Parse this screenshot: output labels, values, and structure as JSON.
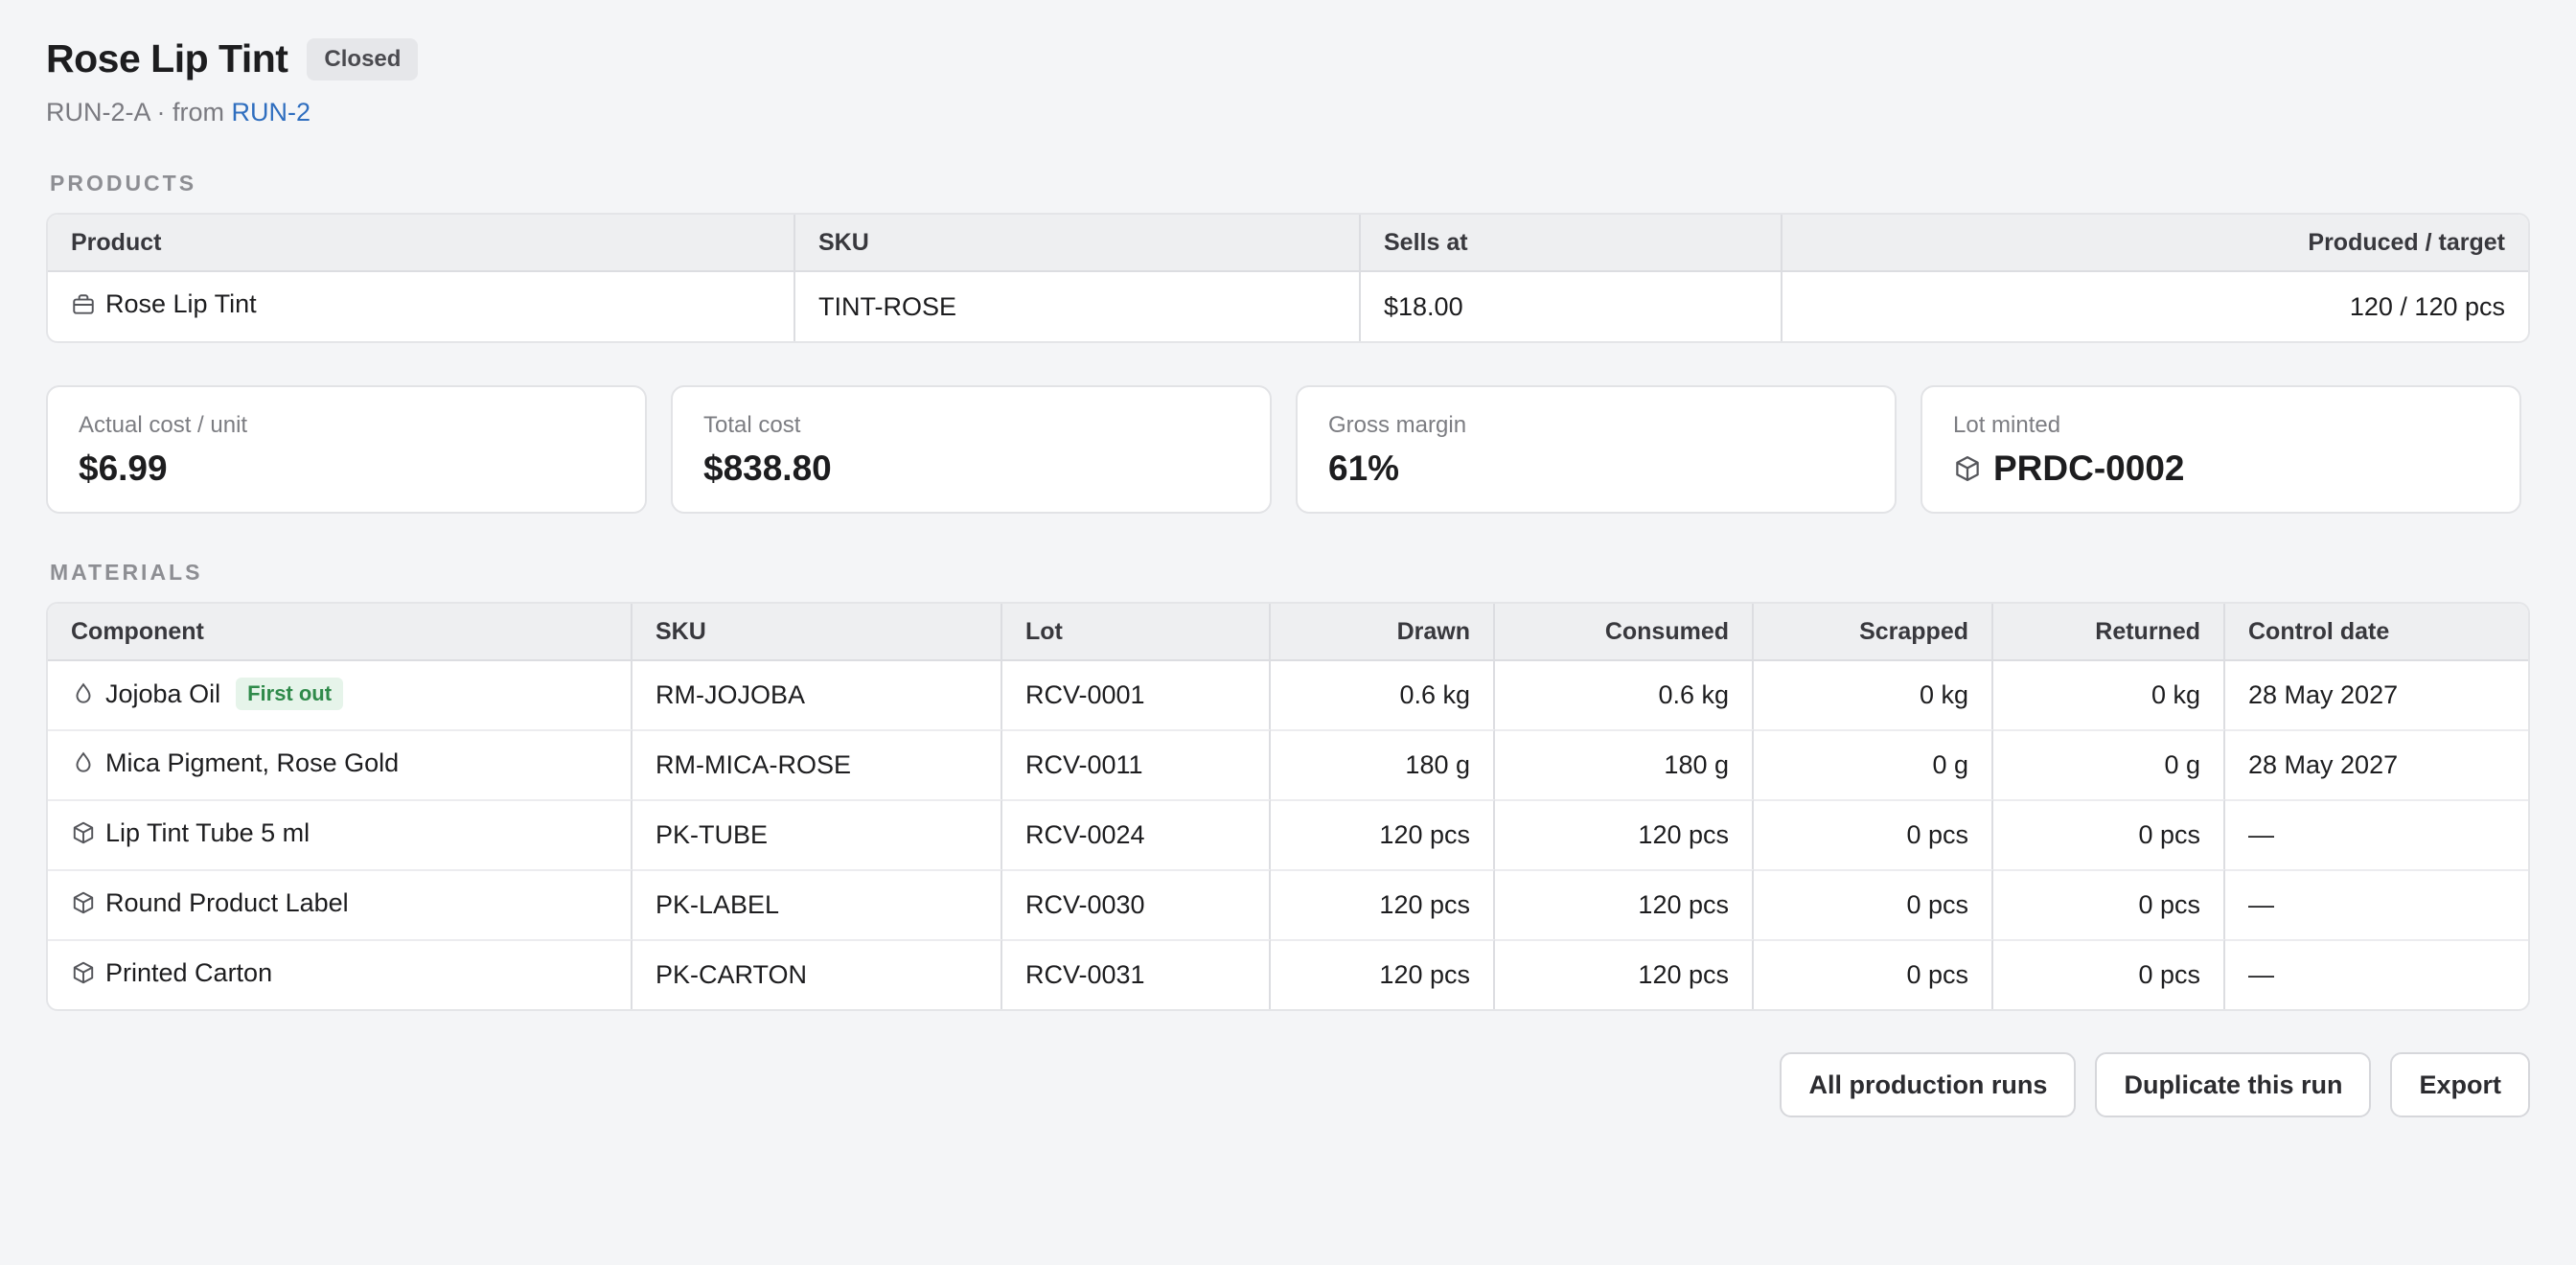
{
  "header": {
    "title": "Rose Lip Tint",
    "status": "Closed",
    "run_id": "RUN-2-A",
    "from_prefix": "· from",
    "parent_run": "RUN-2"
  },
  "products": {
    "section_label": "PRODUCTS",
    "columns": [
      "Product",
      "SKU",
      "Sells at",
      "Produced / target"
    ],
    "rows": [
      {
        "icon": "bag-icon",
        "product": "Rose Lip Tint",
        "sku": "TINT-ROSE",
        "sells_at": "$18.00",
        "produced_target": "120 / 120 pcs"
      }
    ]
  },
  "stats": {
    "cost_unit_label": "Actual cost / unit",
    "cost_unit_value": "$6.99",
    "total_cost_label": "Total cost",
    "total_cost_value": "$838.80",
    "margin_label": "Gross margin",
    "margin_value": "61%",
    "lot_label": "Lot minted",
    "lot_value": "PRDC-0002"
  },
  "materials": {
    "section_label": "MATERIALS",
    "columns": [
      "Component",
      "SKU",
      "Lot",
      "Drawn",
      "Consumed",
      "Scrapped",
      "Returned",
      "Control date"
    ],
    "rows": [
      {
        "icon": "droplet-icon",
        "component": "Jojoba Oil",
        "badge": "First out",
        "sku": "RM-JOJOBA",
        "lot": "RCV-0001",
        "drawn": "0.6 kg",
        "consumed": "0.6 kg",
        "scrapped": "0 kg",
        "returned": "0 kg",
        "control_date": "28 May 2027"
      },
      {
        "icon": "droplet-icon",
        "component": "Mica Pigment, Rose Gold",
        "sku": "RM-MICA-ROSE",
        "lot": "RCV-0011",
        "drawn": "180 g",
        "consumed": "180 g",
        "scrapped": "0 g",
        "returned": "0 g",
        "control_date": "28 May 2027"
      },
      {
        "icon": "box-icon",
        "component": "Lip Tint Tube 5 ml",
        "sku": "PK-TUBE",
        "lot": "RCV-0024",
        "drawn": "120 pcs",
        "consumed": "120 pcs",
        "scrapped": "0 pcs",
        "returned": "0 pcs",
        "control_date": "—"
      },
      {
        "icon": "box-icon",
        "component": "Round Product Label",
        "sku": "PK-LABEL",
        "lot": "RCV-0030",
        "drawn": "120 pcs",
        "consumed": "120 pcs",
        "scrapped": "0 pcs",
        "returned": "0 pcs",
        "control_date": "—"
      },
      {
        "icon": "box-icon",
        "component": "Printed Carton",
        "sku": "PK-CARTON",
        "lot": "RCV-0031",
        "drawn": "120 pcs",
        "consumed": "120 pcs",
        "scrapped": "0 pcs",
        "returned": "0 pcs",
        "control_date": "—"
      }
    ]
  },
  "actions": {
    "all_runs": "All production runs",
    "duplicate": "Duplicate this run",
    "export": "Export"
  },
  "colors": {
    "link": "#2f6ebf",
    "first_out_bg": "#e6f4ea",
    "first_out_text": "#2f8a4a",
    "status_badge_bg": "#e6e7ea"
  }
}
